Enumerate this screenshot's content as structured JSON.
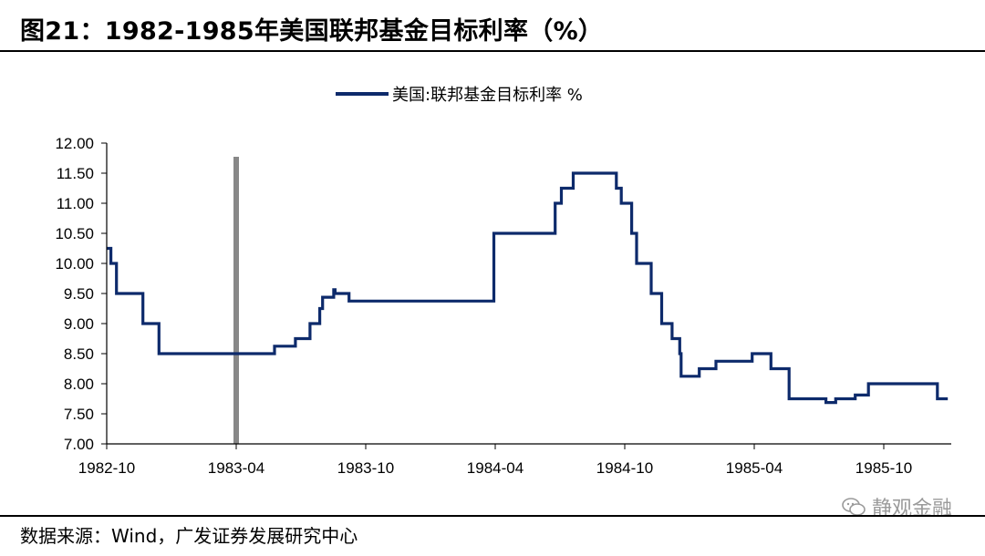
{
  "figure": {
    "title": "图21：1982-1985年美国联邦基金目标利率（%）",
    "source": "数据来源：Wind，广发证券发展研究中心",
    "watermark": "静观金融"
  },
  "colors": {
    "line": "#0d2a6b",
    "marker": "#888888"
  },
  "chart_data": {
    "type": "line",
    "step": true,
    "legend": [
      "美国:联邦基金目标利率 %"
    ],
    "legend_position": "top-center",
    "grid": false,
    "ylim": [
      7.0,
      12.0
    ],
    "yticks": [
      "12.00",
      "11.50",
      "11.00",
      "10.50",
      "10.00",
      "9.50",
      "9.00",
      "8.50",
      "8.00",
      "7.50",
      "7.00"
    ],
    "xticks": [
      "1982-10",
      "1983-04",
      "1983-10",
      "1984-04",
      "1984-10",
      "1985-04",
      "1985-10"
    ],
    "marker_line": "1983-04",
    "series": [
      {
        "name": "美国:联邦基金目标利率 %",
        "points": [
          [
            "1982-10-01",
            10.25
          ],
          [
            "1982-10-07",
            10.0
          ],
          [
            "1982-10-15",
            9.5
          ],
          [
            "1982-11-22",
            9.0
          ],
          [
            "1982-12-14",
            8.5
          ],
          [
            "1983-05-25",
            8.625
          ],
          [
            "1983-06-24",
            8.75
          ],
          [
            "1983-07-14",
            9.0
          ],
          [
            "1983-07-28",
            9.25
          ],
          [
            "1983-08-01",
            9.4375
          ],
          [
            "1983-08-17",
            9.5625
          ],
          [
            "1983-08-19",
            9.5
          ],
          [
            "1983-09-08",
            9.375
          ],
          [
            "1984-03-30",
            10.5
          ],
          [
            "1984-06-25",
            11.0
          ],
          [
            "1984-07-03",
            11.25
          ],
          [
            "1984-07-20",
            11.5
          ],
          [
            "1984-09-20",
            11.25
          ],
          [
            "1984-09-27",
            11.0
          ],
          [
            "1984-10-11",
            10.5
          ],
          [
            "1984-10-18",
            10.0
          ],
          [
            "1984-11-08",
            9.5
          ],
          [
            "1984-11-23",
            9.0
          ],
          [
            "1984-12-07",
            8.75
          ],
          [
            "1984-12-18",
            8.5
          ],
          [
            "1984-12-20",
            8.125
          ],
          [
            "1985-01-15",
            8.25
          ],
          [
            "1985-02-08",
            8.375
          ],
          [
            "1985-03-29",
            8.5
          ],
          [
            "1985-04-25",
            8.25
          ],
          [
            "1985-05-20",
            7.75
          ],
          [
            "1985-07-11",
            7.6875
          ],
          [
            "1985-07-25",
            7.75
          ],
          [
            "1985-08-22",
            7.8125
          ],
          [
            "1985-09-10",
            8.0
          ],
          [
            "1985-12-16",
            7.75
          ],
          [
            "1985-12-31",
            7.75
          ]
        ]
      }
    ]
  }
}
